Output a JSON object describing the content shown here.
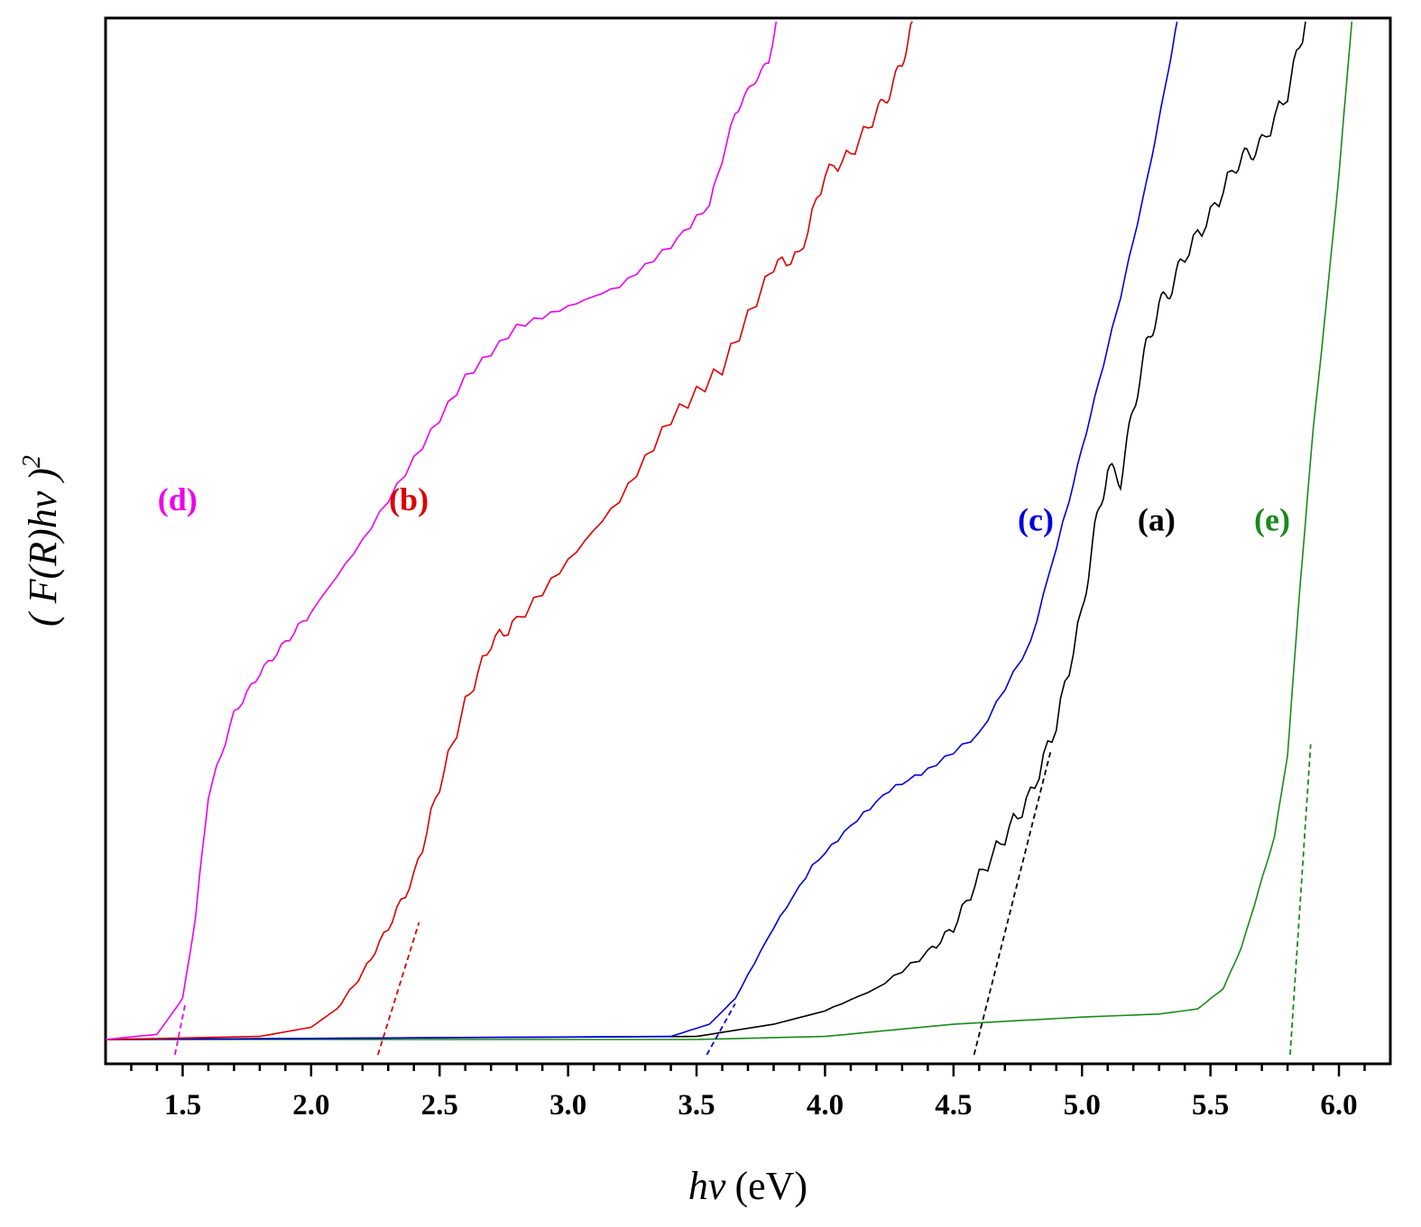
{
  "chart_data": {
    "type": "line",
    "title": "",
    "xlabel": {
      "italic": "hν",
      "unit": "(eV)"
    },
    "ylabel": {
      "text": "( F(R)hν )",
      "superscript": "2"
    },
    "xlim": [
      1.2,
      6.2
    ],
    "ylim": [
      0,
      100
    ],
    "x_ticks": [
      "1.5",
      "2.0",
      "2.5",
      "3.0",
      "3.5",
      "4.0",
      "4.5",
      "5.0",
      "5.5",
      "6.0"
    ],
    "y_ticks_shown": false,
    "grid": false,
    "legend": "none",
    "series": [
      {
        "label": "(a)",
        "color": "#000000",
        "x": [
          1.2,
          3.5,
          3.8,
          4.0,
          4.2,
          4.4,
          4.5,
          4.6,
          4.7,
          4.8,
          4.9,
          5.0,
          5.05,
          5.1,
          5.15,
          5.2,
          5.25,
          5.3,
          5.35,
          5.4,
          5.5,
          5.6,
          5.65,
          5.7,
          5.8,
          5.87
        ],
        "y": [
          0,
          0.3,
          1.5,
          2.8,
          5.0,
          8.5,
          11.0,
          16.0,
          20.0,
          24.0,
          31.0,
          42.0,
          50.0,
          56.0,
          55.0,
          62.0,
          68.0,
          72.0,
          74.0,
          77.0,
          81.0,
          86.0,
          87.0,
          88.0,
          93.0,
          100.0
        ],
        "bandgap": 4.58,
        "fit_x": [
          4.58,
          4.88
        ],
        "fit_y": [
          -1.5,
          28.5
        ]
      },
      {
        "label": "(b)",
        "color": "#dd0000",
        "x": [
          1.2,
          1.8,
          2.0,
          2.1,
          2.2,
          2.3,
          2.4,
          2.5,
          2.6,
          2.7,
          2.8,
          3.0,
          3.2,
          3.4,
          3.6,
          3.8,
          3.9,
          4.0,
          4.1,
          4.2,
          4.25,
          4.3,
          4.34
        ],
        "y": [
          0,
          0.3,
          1.2,
          3.0,
          6.5,
          11.0,
          16.0,
          25.0,
          33.0,
          39.0,
          41.0,
          47.0,
          53.0,
          61.0,
          66.0,
          76.0,
          77.0,
          85.0,
          87.0,
          91.0,
          93.0,
          96.0,
          100.0
        ],
        "bandgap": 2.26,
        "fit_x": [
          2.26,
          2.42
        ],
        "fit_y": [
          -1.5,
          11.5
        ]
      },
      {
        "label": "(c)",
        "color": "#0000dd",
        "x": [
          1.2,
          3.4,
          3.55,
          3.65,
          3.8,
          3.95,
          4.1,
          4.25,
          4.4,
          4.6,
          4.8,
          4.95,
          5.05,
          5.15,
          5.25,
          5.32,
          5.37
        ],
        "y": [
          0,
          0.3,
          1.5,
          4.0,
          11.0,
          17.0,
          21.0,
          24.5,
          26.5,
          30.0,
          39.0,
          53.0,
          63.0,
          73.0,
          84.0,
          93.0,
          100.0
        ],
        "bandgap": 3.54,
        "fit_x": [
          3.54,
          3.65
        ],
        "fit_y": [
          -1.5,
          3.5
        ]
      },
      {
        "label": "(d)",
        "color": "#ee00ee",
        "x": [
          1.2,
          1.4,
          1.5,
          1.55,
          1.6,
          1.7,
          1.8,
          1.9,
          2.0,
          2.2,
          2.4,
          2.6,
          2.8,
          3.0,
          3.2,
          3.4,
          3.55,
          3.65,
          3.72,
          3.78,
          3.81
        ],
        "y": [
          0,
          0.5,
          4.0,
          12.0,
          24.0,
          32.0,
          36.0,
          39.0,
          42.0,
          49.0,
          57.0,
          65.0,
          70.0,
          72.0,
          74.0,
          78.0,
          82.0,
          91.0,
          94.0,
          96.0,
          100.0
        ],
        "bandgap": 1.47,
        "fit_x": [
          1.47,
          1.51
        ],
        "fit_y": [
          -1.5,
          3.5
        ]
      },
      {
        "label": "(e)",
        "color": "#1a8a1a",
        "x": [
          1.2,
          3.5,
          4.0,
          4.5,
          5.0,
          5.3,
          5.45,
          5.55,
          5.62,
          5.68,
          5.75,
          5.8,
          5.85,
          5.9,
          5.95,
          6.0,
          6.03,
          6.05
        ],
        "y": [
          0,
          0.0,
          0.3,
          1.5,
          2.2,
          2.5,
          3.0,
          5.0,
          9.0,
          14.0,
          20.0,
          28.0,
          45.0,
          60.0,
          72.0,
          85.0,
          94.0,
          100.0
        ],
        "bandgap": 5.81,
        "fit_x": [
          5.81,
          5.89
        ],
        "fit_y": [
          -1.5,
          29.0
        ]
      }
    ],
    "series_labels": [
      {
        "text": "(d)",
        "color": "#ee00ee",
        "x": 1.48,
        "y": 52
      },
      {
        "text": "(b)",
        "color": "#dd0000",
        "x": 2.38,
        "y": 52
      },
      {
        "text": "(c)",
        "color": "#0000dd",
        "x": 4.82,
        "y": 50
      },
      {
        "text": "(a)",
        "color": "#000000",
        "x": 5.29,
        "y": 50
      },
      {
        "text": "(e)",
        "color": "#1a8a1a",
        "x": 5.74,
        "y": 50
      }
    ]
  }
}
